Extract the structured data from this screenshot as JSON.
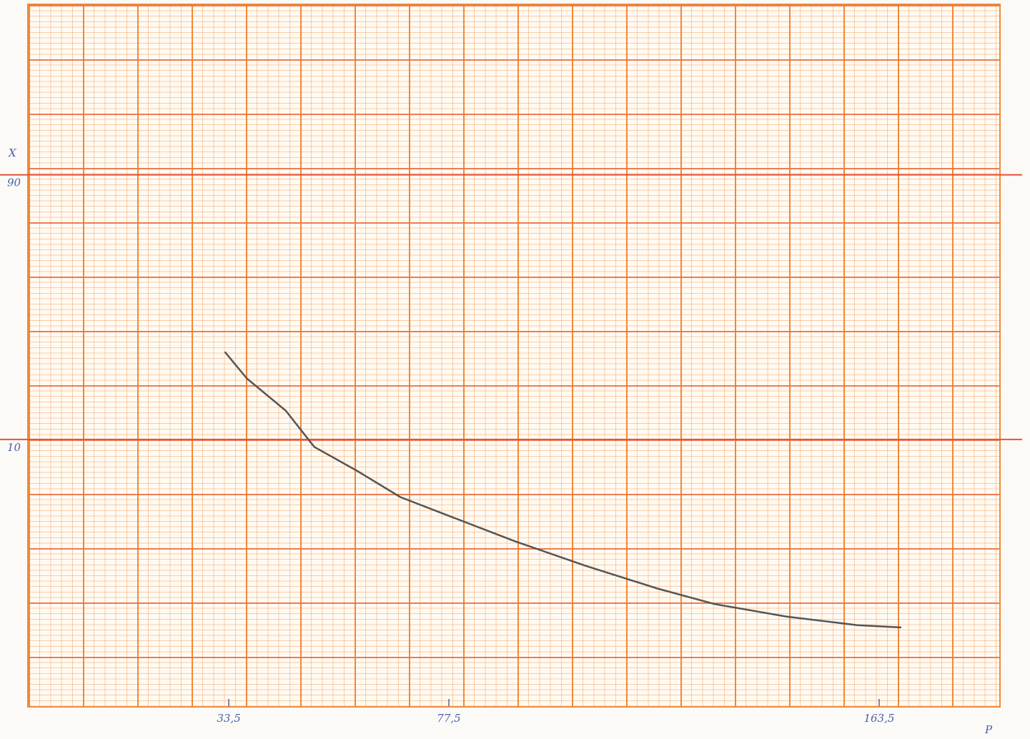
{
  "chart_data": {
    "type": "line",
    "y_label": "X",
    "x_label": "P",
    "y_scale": "log",
    "x": [
      32.8,
      37.1,
      44.9,
      50.6,
      59.2,
      67.8,
      76.4,
      90.6,
      104.9,
      119.2,
      130.6,
      144.9,
      159.2,
      167.8
    ],
    "values": [
      20.6,
      16.6,
      12.7,
      9.4,
      7.7,
      6.2,
      5.4,
      4.3,
      3.5,
      2.9,
      2.55,
      2.3,
      2.14,
      2.1
    ],
    "color": "#555555",
    "xlim": [
      -6.8,
      187.8
    ],
    "xticks": [
      {
        "value": 33.5,
        "label": "33,5"
      },
      {
        "value": 77.5,
        "label": "77,5"
      },
      {
        "value": 163.5,
        "label": "163,5"
      }
    ],
    "ylim": [
      1.08,
      373
    ],
    "yticks": [
      10,
      90
    ],
    "grid": true
  }
}
